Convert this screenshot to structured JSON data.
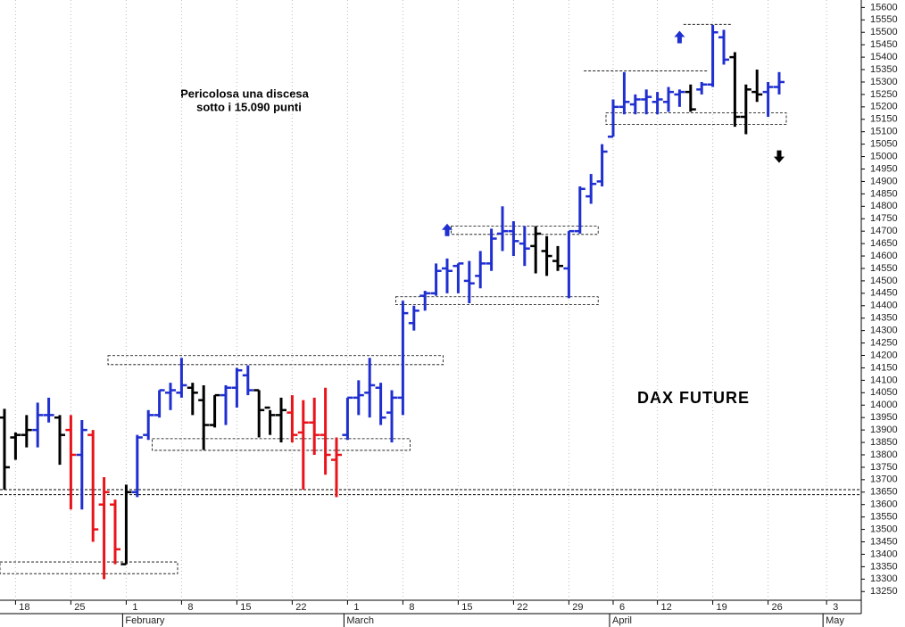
{
  "chart_data": {
    "type": "ohlc",
    "title": "DAX FUTURE",
    "annotation": [
      "Pericolosa una discesa",
      "sotto i 15.090 punti"
    ],
    "x": [
      "01-15",
      "01-18",
      "01-19",
      "01-20",
      "01-21",
      "01-22",
      "01-25",
      "01-26",
      "01-27",
      "01-28",
      "01-29",
      "02-01",
      "02-02",
      "02-03",
      "02-04",
      "02-05",
      "02-08",
      "02-09",
      "02-10",
      "02-11",
      "02-12",
      "02-15",
      "02-16",
      "02-17",
      "02-18",
      "02-19",
      "02-22",
      "02-23",
      "02-24",
      "02-25",
      "02-26",
      "03-01",
      "03-02",
      "03-03",
      "03-04",
      "03-05",
      "03-08",
      "03-09",
      "03-10",
      "03-11",
      "03-12",
      "03-15",
      "03-16",
      "03-17",
      "03-18",
      "03-19",
      "03-22",
      "03-23",
      "03-24",
      "03-25",
      "03-26",
      "03-29",
      "03-30",
      "03-31",
      "04-01",
      "04-06",
      "04-07",
      "04-08",
      "04-09",
      "04-12",
      "04-13",
      "04-14",
      "04-15",
      "04-16",
      "04-19",
      "04-20",
      "04-21",
      "04-22",
      "04-23",
      "04-26",
      "04-27"
    ],
    "open": [
      13950,
      13870,
      13880,
      13900,
      13960,
      13950,
      13900,
      13800,
      13880,
      13600,
      13600,
      13360,
      13650,
      13880,
      13960,
      14050,
      14050,
      14070,
      14020,
      13920,
      14040,
      14070,
      14120,
      14060,
      13990,
      13960,
      13970,
      13890,
      13930,
      13880,
      13780,
      13880,
      14030,
      14050,
      14070,
      13970,
      14030,
      14330,
      14440,
      14450,
      14550,
      14560,
      14500,
      14520,
      14570,
      14690,
      14700,
      14650,
      14640,
      14620,
      14580,
      14550,
      14700,
      14840,
      14900,
      15080,
      15200,
      15210,
      15230,
      15220,
      15220,
      15250,
      15260,
      15270,
      15290,
      15480,
      15400,
      15160,
      15260,
      15260,
      15280
    ],
    "high": [
      13985,
      13890,
      13960,
      14010,
      14030,
      13960,
      13960,
      13940,
      13900,
      13710,
      13620,
      13680,
      13880,
      13980,
      14060,
      14090,
      14190,
      14090,
      14080,
      14040,
      14080,
      14150,
      14160,
      14060,
      13980,
      14030,
      14040,
      14020,
      14030,
      14070,
      13870,
      14030,
      14100,
      14190,
      14090,
      14060,
      14420,
      14400,
      14460,
      14570,
      14590,
      14570,
      14580,
      14620,
      14710,
      14800,
      14740,
      14720,
      14720,
      14680,
      14640,
      14700,
      14880,
      14930,
      15050,
      15230,
      15340,
      15250,
      15270,
      15260,
      15280,
      15270,
      15290,
      15300,
      15530,
      15510,
      15420,
      15290,
      15350,
      15300,
      15340
    ],
    "low": [
      13660,
      13780,
      13830,
      13830,
      13930,
      13760,
      13580,
      13580,
      13450,
      13300,
      13360,
      13360,
      13630,
      13860,
      13950,
      13980,
      14030,
      13960,
      13820,
      13910,
      13920,
      13990,
      14040,
      13870,
      13880,
      13850,
      13850,
      13660,
      13800,
      13720,
      13630,
      13860,
      13960,
      13950,
      13920,
      13850,
      13960,
      14300,
      14380,
      14440,
      14450,
      14450,
      14410,
      14470,
      14540,
      14620,
      14600,
      14560,
      14530,
      14520,
      14540,
      14430,
      14690,
      14810,
      14880,
      15080,
      15170,
      15170,
      15170,
      15170,
      15180,
      15200,
      15180,
      15250,
      15280,
      15370,
      15120,
      15090,
      15220,
      15160,
      15250
    ],
    "close": [
      13750,
      13880,
      13900,
      13960,
      13960,
      13880,
      13800,
      13900,
      13500,
      13650,
      13420,
      13650,
      13870,
      13960,
      14060,
      14060,
      14080,
      14050,
      13920,
      14040,
      14070,
      14140,
      14060,
      13980,
      13960,
      13980,
      13880,
      13930,
      13880,
      13800,
      13800,
      14030,
      14040,
      14080,
      13950,
      14030,
      14370,
      14380,
      14450,
      14540,
      14540,
      14570,
      14490,
      14570,
      14670,
      14700,
      14660,
      14630,
      14690,
      14600,
      14560,
      14700,
      14870,
      14890,
      15020,
      15200,
      15220,
      15230,
      15240,
      15230,
      15260,
      15260,
      15190,
      15290,
      15500,
      15390,
      15160,
      15270,
      15250,
      15280,
      15300
    ],
    "colors": [
      "#000000",
      "#000000",
      "#000000",
      "#1f2fd0",
      "#1f2fd0",
      "#000000",
      "#e8141b",
      "#1f2fd0",
      "#e8141b",
      "#e8141b",
      "#e8141b",
      "#000000",
      "#1f2fd0",
      "#1f2fd0",
      "#1f2fd0",
      "#1f2fd0",
      "#1f2fd0",
      "#000000",
      "#000000",
      "#000000",
      "#1f2fd0",
      "#1f2fd0",
      "#1f2fd0",
      "#000000",
      "#000000",
      "#000000",
      "#e8141b",
      "#e8141b",
      "#e8141b",
      "#e8141b",
      "#e8141b",
      "#1f2fd0",
      "#1f2fd0",
      "#1f2fd0",
      "#1f2fd0",
      "#1f2fd0",
      "#1f2fd0",
      "#1f2fd0",
      "#1f2fd0",
      "#1f2fd0",
      "#1f2fd0",
      "#1f2fd0",
      "#1f2fd0",
      "#1f2fd0",
      "#1f2fd0",
      "#1f2fd0",
      "#1f2fd0",
      "#1f2fd0",
      "#000000",
      "#000000",
      "#000000",
      "#1f2fd0",
      "#1f2fd0",
      "#1f2fd0",
      "#1f2fd0",
      "#1f2fd0",
      "#1f2fd0",
      "#1f2fd0",
      "#1f2fd0",
      "#1f2fd0",
      "#1f2fd0",
      "#1f2fd0",
      "#000000",
      "#1f2fd0",
      "#1f2fd0",
      "#1f2fd0",
      "#000000",
      "#000000",
      "#000000",
      "#1f2fd0",
      "#1f2fd0"
    ],
    "ylim": [
      13215,
      15630
    ],
    "yticks": [
      13250,
      13300,
      13350,
      13400,
      13450,
      13500,
      13550,
      13600,
      13650,
      13700,
      13750,
      13800,
      13850,
      13900,
      13950,
      14000,
      14050,
      14100,
      14150,
      14200,
      14250,
      14300,
      14350,
      14400,
      14450,
      14500,
      14550,
      14600,
      14650,
      14700,
      14750,
      14800,
      14850,
      14900,
      14950,
      15000,
      15050,
      15100,
      15150,
      15200,
      15250,
      15300,
      15350,
      15400,
      15450,
      15500,
      15550,
      15600
    ],
    "xticks": [
      {
        "value": "01-18",
        "label": "18"
      },
      {
        "value": "01-25",
        "label": "25"
      },
      {
        "value": "02-01",
        "label": "1"
      },
      {
        "value": "02-08",
        "label": "8"
      },
      {
        "value": "02-15",
        "label": "15"
      },
      {
        "value": "02-22",
        "label": "22"
      },
      {
        "value": "03-01",
        "label": "1"
      },
      {
        "value": "03-08",
        "label": "8"
      },
      {
        "value": "03-15",
        "label": "15"
      },
      {
        "value": "03-22",
        "label": "22"
      },
      {
        "value": "03-29",
        "label": "29"
      },
      {
        "value": "04-06",
        "label": "6"
      },
      {
        "value": "04-12",
        "label": "12"
      },
      {
        "value": "04-19",
        "label": "19"
      },
      {
        "value": "04-26",
        "label": "26"
      },
      {
        "value": "05-03",
        "label": "3"
      }
    ],
    "month_labels": [
      {
        "value": "02-01",
        "label": "February"
      },
      {
        "value": "03-01",
        "label": "March"
      },
      {
        "value": "04-06",
        "label": "April"
      },
      {
        "value": "05-03",
        "label": "May"
      }
    ],
    "grid": true,
    "levels": [
      13640,
      13660
    ],
    "zones": [
      {
        "from": "01-15",
        "to": "02-05",
        "low": 13322,
        "high": 13369
      },
      {
        "from": "01-29",
        "to": "03-11",
        "low": 14163,
        "high": 14199
      },
      {
        "from": "02-04",
        "to": "03-08",
        "low": 13818,
        "high": 13865
      },
      {
        "from": "03-08",
        "to": "03-31",
        "low": 14404,
        "high": 14436
      },
      {
        "from": "03-15",
        "to": "03-31",
        "low": 14687,
        "high": 14720
      },
      {
        "from": "04-06",
        "to": "04-27",
        "low": 15129,
        "high": 15176
      }
    ],
    "lines": [
      {
        "from": "03-31",
        "to": "04-16",
        "price": 15345
      },
      {
        "from": "04-15",
        "to": "04-20",
        "price": 15532
      }
    ],
    "arrows": [
      {
        "x": "03-12",
        "price": 14705,
        "direction": "up",
        "color": "#1f2fd0"
      },
      {
        "x": "04-14",
        "price": 15481,
        "direction": "up",
        "color": "#1f2fd0"
      },
      {
        "x": "04-27",
        "price": 15000,
        "direction": "down",
        "color": "#000000"
      }
    ]
  }
}
